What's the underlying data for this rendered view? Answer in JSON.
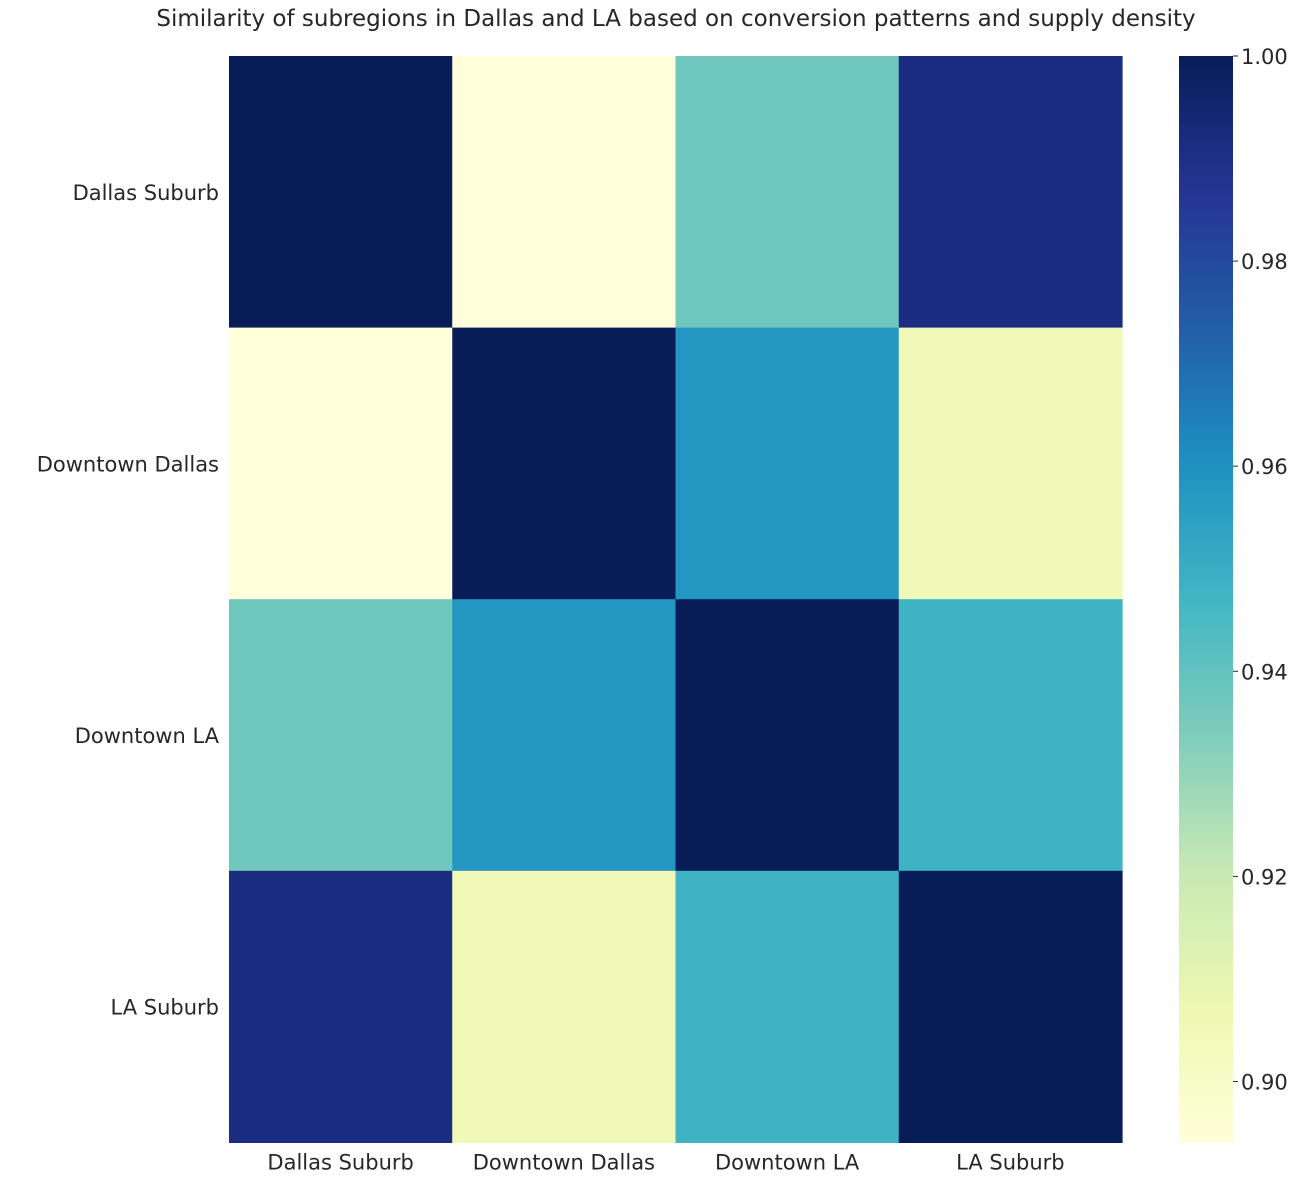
{
  "chart_data": {
    "type": "heatmap",
    "title": "Similarity of subregions in Dallas and LA based on conversion patterns and supply density",
    "xlabel": "",
    "ylabel": "",
    "x_categories": [
      "Dallas Suburb",
      "Downtown Dallas",
      "Downtown LA",
      "LA Suburb"
    ],
    "y_categories": [
      "Dallas Suburb",
      "Downtown Dallas",
      "Downtown LA",
      "LA Suburb"
    ],
    "values": [
      [
        1.0,
        0.894,
        0.937,
        0.991
      ],
      [
        0.894,
        1.0,
        0.958,
        0.905
      ],
      [
        0.937,
        0.958,
        1.0,
        0.948
      ],
      [
        0.991,
        0.905,
        0.948,
        1.0
      ]
    ],
    "colorbar": {
      "min": 0.894,
      "max": 1.0,
      "ticks": [
        0.9,
        0.92,
        0.94,
        0.96,
        0.98,
        1.0
      ],
      "tick_labels": [
        "0.90",
        "0.92",
        "0.94",
        "0.96",
        "0.98",
        "1.00"
      ]
    },
    "colormap": "YlGnBu",
    "colormap_stops": [
      "#ffffd9",
      "#edf8b1",
      "#c7e9b4",
      "#7fcdbb",
      "#41b6c4",
      "#1d91c0",
      "#225ea8",
      "#253494",
      "#081d58"
    ],
    "grid": false
  }
}
